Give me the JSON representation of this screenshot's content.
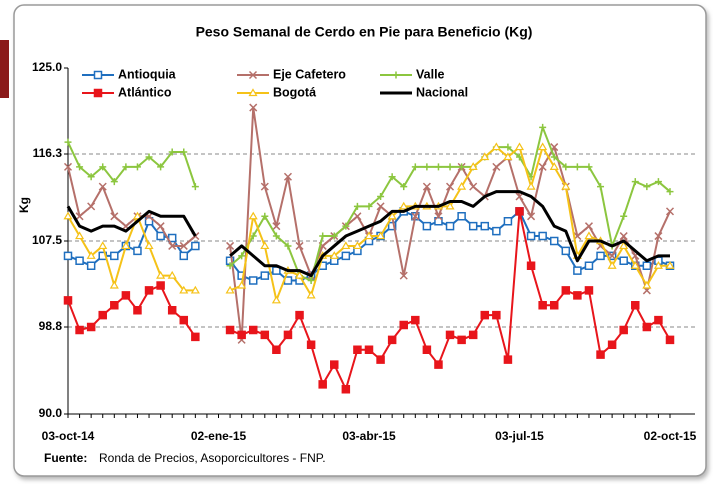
{
  "chart_data": {
    "type": "line",
    "title": "Peso Semanal de Cerdo en Pie para Beneficio (Kg)",
    "y_label": "Kg",
    "source_label": "Fuente:",
    "source": "Ronda de Precios, Asoporcicultores  - FNP.",
    "categories": [
      "03-oct-14",
      null,
      null,
      null,
      null,
      null,
      null,
      null,
      null,
      null,
      null,
      null,
      null,
      "02-ene-15",
      null,
      null,
      null,
      null,
      null,
      null,
      null,
      null,
      null,
      null,
      null,
      null,
      "03-abr-15",
      null,
      null,
      null,
      null,
      null,
      null,
      null,
      null,
      null,
      null,
      null,
      null,
      "03-jul-15",
      null,
      null,
      null,
      null,
      null,
      null,
      null,
      null,
      null,
      null,
      null,
      null,
      "02-oct-15"
    ],
    "ylim": [
      90,
      125
    ],
    "yticks": [
      {
        "value": 90,
        "label": "90.0"
      },
      98.8,
      107.5,
      116.3,
      {
        "value": 125,
        "label": "125.0"
      }
    ],
    "grid": true,
    "series": [
      {
        "name": "Antioquia",
        "color": "#1f6fbf",
        "marker": "square-open",
        "values": [
          106,
          105.5,
          105,
          106,
          106,
          107,
          106.5,
          109.5,
          108,
          107.8,
          106,
          107,
          null,
          null,
          105.5,
          104,
          103.5,
          104,
          104.5,
          103.5,
          103.5,
          104,
          105,
          105.5,
          106,
          106.5,
          107.5,
          108,
          109,
          110.5,
          110,
          109,
          109.5,
          109,
          110,
          109,
          109,
          108.5,
          109.5,
          110.5,
          108,
          108,
          107.5,
          106.5,
          104.5,
          105,
          106,
          106,
          105.5,
          105,
          105,
          105.5,
          105
        ]
      },
      {
        "name": "Eje Cafetero",
        "color": "#b5706a",
        "marker": "x",
        "values": [
          115,
          110,
          111,
          113,
          110,
          109,
          110,
          110,
          109,
          107,
          107,
          108,
          null,
          null,
          107,
          97.5,
          121,
          113,
          109,
          114,
          107,
          104,
          107,
          108,
          109,
          110,
          108,
          111,
          110,
          104,
          110,
          113,
          110,
          113,
          115,
          113,
          112,
          115,
          116,
          112,
          110,
          115,
          117,
          113,
          108,
          109,
          107,
          106,
          108,
          106,
          102.5,
          108,
          110.5
        ]
      },
      {
        "name": "Valle",
        "color": "#8cc63f",
        "marker": "plus",
        "values": [
          117.5,
          115,
          114,
          115,
          113.5,
          115,
          115,
          116,
          115,
          116.5,
          116.5,
          113,
          null,
          null,
          105,
          106,
          108,
          110,
          108,
          107,
          104,
          103.5,
          108,
          108,
          109,
          111,
          111,
          112,
          114,
          113,
          115,
          115,
          115,
          115,
          115,
          115,
          116,
          117,
          117,
          116,
          114,
          119,
          116,
          115,
          115,
          115,
          113,
          107,
          110,
          113.5,
          113,
          113.5,
          112.5
        ]
      },
      {
        "name": "Atlántico",
        "color": "#e8151b",
        "marker": "square",
        "values": [
          101.5,
          98.5,
          98.8,
          100,
          101,
          102,
          100.5,
          102.5,
          103,
          100.5,
          99.5,
          97.8,
          null,
          null,
          98.5,
          98,
          98.5,
          98,
          96.5,
          98,
          100,
          97,
          93,
          95,
          92.5,
          96.5,
          96.5,
          95.5,
          97.5,
          99,
          99.5,
          96.5,
          95,
          98,
          97.5,
          98,
          100,
          100,
          95.5,
          110.5,
          105,
          101,
          101,
          102.5,
          102,
          102.5,
          96,
          97,
          98.5,
          101,
          98.8,
          99.5,
          97.5
        ]
      },
      {
        "name": "Bogotá",
        "color": "#f5c218",
        "marker": "triangle",
        "values": [
          110,
          108,
          106,
          107,
          103,
          107,
          110,
          107,
          104,
          104,
          102.5,
          102.5,
          null,
          null,
          102.5,
          103,
          110,
          107,
          101.5,
          104.5,
          104,
          102,
          106,
          106,
          107,
          107,
          108,
          108,
          110,
          111,
          111,
          111,
          111,
          111,
          113,
          115,
          116,
          117,
          116,
          117,
          113,
          117,
          115,
          113,
          106,
          108,
          107.5,
          105,
          107,
          105,
          103,
          105,
          105
        ]
      },
      {
        "name": "Nacional",
        "color": "#000000",
        "marker": "none",
        "values": [
          111,
          109,
          108.5,
          109,
          109,
          108.5,
          109.5,
          110.5,
          110,
          110,
          110,
          108,
          null,
          null,
          106,
          107,
          106,
          105,
          105,
          104.5,
          104.5,
          104,
          106,
          107,
          108,
          108.5,
          109,
          109.5,
          110.5,
          110.5,
          111,
          111,
          111,
          111.5,
          111.5,
          111,
          112,
          112.5,
          112.5,
          112.5,
          112,
          111,
          109,
          108.5,
          105.5,
          107.5,
          107.5,
          107,
          107.5,
          106.5,
          105.5,
          106,
          106
        ]
      }
    ]
  }
}
